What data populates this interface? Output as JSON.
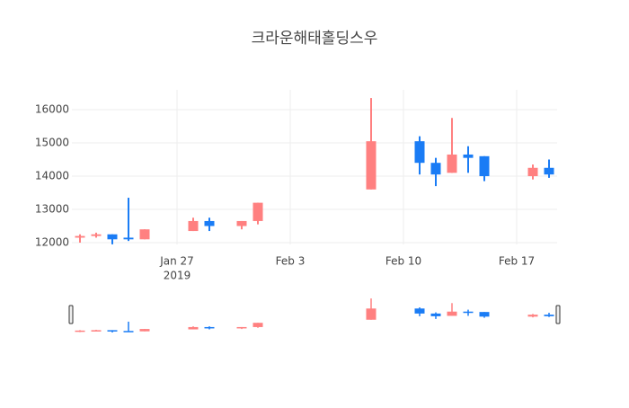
{
  "chart_data": {
    "type": "candlestick",
    "title": "크라운해태홀딩스우",
    "x": [
      "2019-01-21",
      "2019-01-22",
      "2019-01-23",
      "2019-01-24",
      "2019-01-25",
      "2019-01-28",
      "2019-01-29",
      "2019-01-31",
      "2019-02-01",
      "2019-02-08",
      "2019-02-11",
      "2019-02-12",
      "2019-02-13",
      "2019-02-14",
      "2019-02-15",
      "2019-02-18",
      "2019-02-19"
    ],
    "open": [
      12150,
      12200,
      12250,
      12150,
      12100,
      12350,
      12650,
      12500,
      12650,
      13600,
      15050,
      14400,
      14100,
      14650,
      14600,
      14000,
      14250
    ],
    "high": [
      12250,
      12300,
      12250,
      13350,
      12400,
      12750,
      12750,
      12650,
      13200,
      16350,
      15200,
      14550,
      15750,
      14900,
      14600,
      14350,
      14500
    ],
    "low": [
      12000,
      12150,
      11950,
      12050,
      12100,
      12350,
      12350,
      12400,
      12550,
      13600,
      14050,
      13700,
      14100,
      14100,
      13850,
      13900,
      13950
    ],
    "close": [
      12200,
      12250,
      12100,
      12100,
      12400,
      12650,
      12500,
      12650,
      13200,
      15050,
      14400,
      14050,
      14650,
      14550,
      14000,
      14250,
      14050
    ],
    "increasing_color": "#ff8080",
    "decreasing_color": "#1a7cf5",
    "xlim": [
      "2019-01-20T12:00",
      "2019-02-19T12:00"
    ],
    "xticks": [
      {
        "value": "2019-01-27",
        "label": "Jan 27",
        "sublabel": "2019"
      },
      {
        "value": "2019-02-03",
        "label": "Feb 3"
      },
      {
        "value": "2019-02-10",
        "label": "Feb 10"
      },
      {
        "value": "2019-02-17",
        "label": "Feb 17"
      }
    ],
    "ylim": [
      11946,
      16595
    ],
    "yticks": [
      12000,
      13000,
      14000,
      15000,
      16000
    ],
    "grid": true,
    "rangeslider": true
  }
}
